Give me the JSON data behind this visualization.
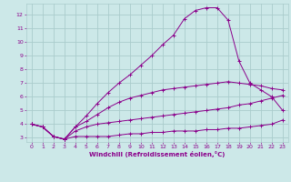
{
  "xlabel": "Windchill (Refroidissement éolien,°C)",
  "background_color": "#cce8e8",
  "grid_color": "#aacccc",
  "line_color": "#8b008b",
  "text_color": "#8b008b",
  "xlim": [
    -0.5,
    23.5
  ],
  "ylim": [
    2.7,
    12.8
  ],
  "x_ticks": [
    0,
    1,
    2,
    3,
    4,
    5,
    6,
    7,
    8,
    9,
    10,
    11,
    12,
    13,
    14,
    15,
    16,
    17,
    18,
    19,
    20,
    21,
    22,
    23
  ],
  "y_ticks": [
    3,
    4,
    5,
    6,
    7,
    8,
    9,
    10,
    11,
    12
  ],
  "series": [
    {
      "x": [
        0,
        1,
        2,
        3,
        4,
        5,
        6,
        7,
        8,
        9,
        10,
        11,
        12,
        13,
        14,
        15,
        16,
        17,
        18,
        19,
        20,
        21,
        22,
        23
      ],
      "y": [
        4.0,
        3.8,
        3.1,
        2.9,
        3.1,
        3.1,
        3.1,
        3.1,
        3.2,
        3.3,
        3.3,
        3.4,
        3.4,
        3.5,
        3.5,
        3.5,
        3.6,
        3.6,
        3.7,
        3.7,
        3.8,
        3.9,
        4.0,
        4.3
      ]
    },
    {
      "x": [
        0,
        1,
        2,
        3,
        4,
        5,
        6,
        7,
        8,
        9,
        10,
        11,
        12,
        13,
        14,
        15,
        16,
        17,
        18,
        19,
        20,
        21,
        22,
        23
      ],
      "y": [
        4.0,
        3.8,
        3.1,
        2.9,
        3.5,
        3.8,
        4.0,
        4.1,
        4.2,
        4.3,
        4.4,
        4.5,
        4.6,
        4.7,
        4.8,
        4.9,
        5.0,
        5.1,
        5.2,
        5.4,
        5.5,
        5.7,
        5.9,
        6.1
      ]
    },
    {
      "x": [
        0,
        1,
        2,
        3,
        4,
        5,
        6,
        7,
        8,
        9,
        10,
        11,
        12,
        13,
        14,
        15,
        16,
        17,
        18,
        19,
        20,
        21,
        22,
        23
      ],
      "y": [
        4.0,
        3.8,
        3.1,
        2.9,
        3.8,
        4.6,
        5.5,
        6.3,
        7.0,
        7.6,
        8.3,
        9.0,
        9.8,
        10.5,
        11.7,
        12.3,
        12.5,
        12.5,
        11.6,
        8.6,
        7.0,
        6.5,
        6.0,
        5.0
      ]
    },
    {
      "x": [
        0,
        1,
        2,
        3,
        4,
        5,
        6,
        7,
        8,
        9,
        10,
        11,
        12,
        13,
        14,
        15,
        16,
        17,
        18,
        19,
        20,
        21,
        22,
        23
      ],
      "y": [
        4.0,
        3.8,
        3.1,
        2.9,
        3.8,
        4.2,
        4.7,
        5.2,
        5.6,
        5.9,
        6.1,
        6.3,
        6.5,
        6.6,
        6.7,
        6.8,
        6.9,
        7.0,
        7.1,
        7.0,
        6.9,
        6.8,
        6.6,
        6.5
      ]
    }
  ]
}
